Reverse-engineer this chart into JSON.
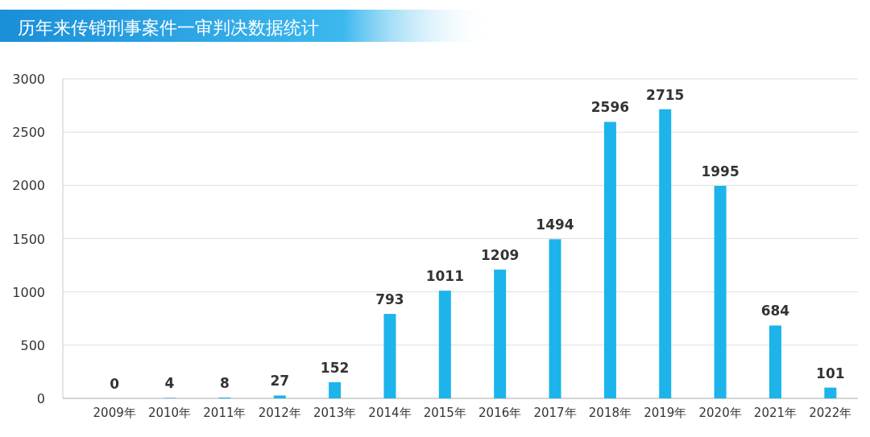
{
  "chart_data": {
    "type": "bar",
    "title": "历年来传销刑事案件一审判决数据统计",
    "categories": [
      "2009年",
      "2010年",
      "2011年",
      "2012年",
      "2013年",
      "2014年",
      "2015年",
      "2016年",
      "2017年",
      "2018年",
      "2019年",
      "2020年",
      "2021年",
      "2022年"
    ],
    "values": [
      0,
      4,
      8,
      27,
      152,
      793,
      1011,
      1209,
      1494,
      2596,
      2715,
      1995,
      684,
      101
    ],
    "color": "#1cb4ea",
    "ylim": [
      0,
      3000
    ],
    "yticks": [
      0,
      500,
      1000,
      1500,
      2000,
      2500,
      3000
    ],
    "grid": "y",
    "data_labels": true
  }
}
